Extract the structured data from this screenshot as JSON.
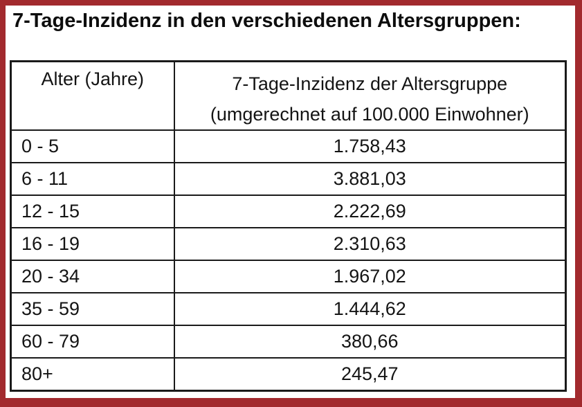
{
  "colors": {
    "frame_border": "#A22A2E",
    "table_line": "#1a1a1a"
  },
  "title": "7-Tage-Inzidenz in den verschiedenen Altersgruppen:",
  "table": {
    "headers": {
      "age_column": "Alter (Jahre)",
      "value_column_line1": "7-Tage-Inzidenz der Altersgruppe",
      "value_column_line2": "(umgerechnet auf 100.000 Einwohner)"
    },
    "rows": [
      {
        "age": "0 - 5",
        "incidence": "1.758,43"
      },
      {
        "age": "6 - 11",
        "incidence": "3.881,03"
      },
      {
        "age": "12 - 15",
        "incidence": "2.222,69"
      },
      {
        "age": "16 - 19",
        "incidence": "2.310,63"
      },
      {
        "age": "20 - 34",
        "incidence": "1.967,02"
      },
      {
        "age": "35 - 59",
        "incidence": "1.444,62"
      },
      {
        "age": "60 - 79",
        "incidence": "380,66"
      },
      {
        "age": "80+",
        "incidence": "245,47"
      }
    ]
  }
}
